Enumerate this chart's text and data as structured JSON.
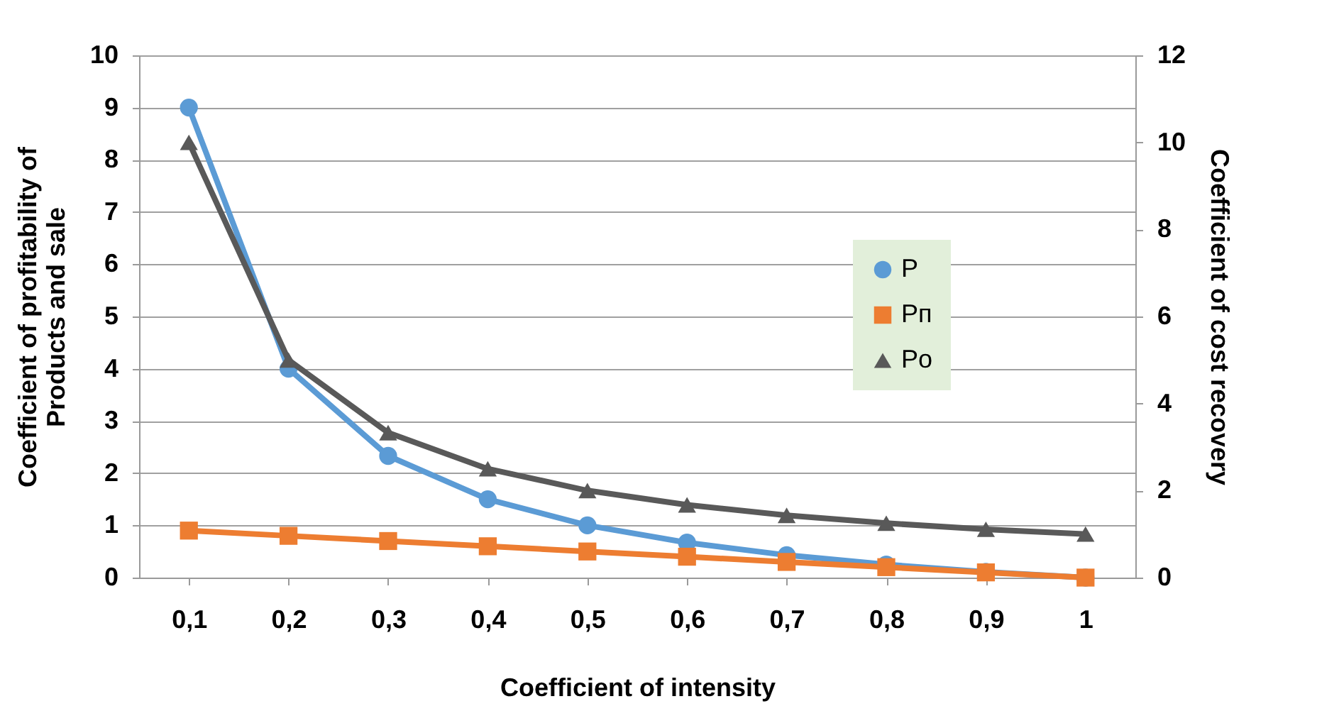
{
  "chart_data": {
    "type": "line",
    "xlabel": "Coefficient of intensity",
    "ylabel": "Coefficient of profitability of\nProducts and sale",
    "y2label": "Coefficient of cost recovery",
    "categories": [
      "0,1",
      "0,2",
      "0,3",
      "0,4",
      "0,5",
      "0,6",
      "0,7",
      "0,8",
      "0,9",
      "1"
    ],
    "series": [
      {
        "name": "P",
        "color": "#5b9bd5",
        "marker": "circle",
        "values": [
          9,
          4,
          2.33,
          1.5,
          1,
          0.67,
          0.43,
          0.25,
          0.11,
          0
        ]
      },
      {
        "name": "Pп",
        "color": "#ed7d31",
        "marker": "square",
        "values": [
          0.9,
          0.8,
          0.7,
          0.6,
          0.5,
          0.4,
          0.3,
          0.2,
          0.1,
          0
        ]
      },
      {
        "name": "Po",
        "color": "#595959",
        "marker": "triangle",
        "axis": "y2",
        "values": [
          10,
          5,
          3.33,
          2.5,
          2,
          1.67,
          1.43,
          1.25,
          1.11,
          1
        ]
      }
    ],
    "ylim": [
      0,
      10
    ],
    "yticks": [
      0,
      1,
      2,
      3,
      4,
      5,
      6,
      7,
      8,
      9,
      10
    ],
    "y2lim": [
      0,
      12
    ],
    "y2ticks": [
      0,
      2,
      4,
      6,
      8,
      10,
      12
    ],
    "grid": "y",
    "legend": "top right",
    "line_style": "solid"
  }
}
